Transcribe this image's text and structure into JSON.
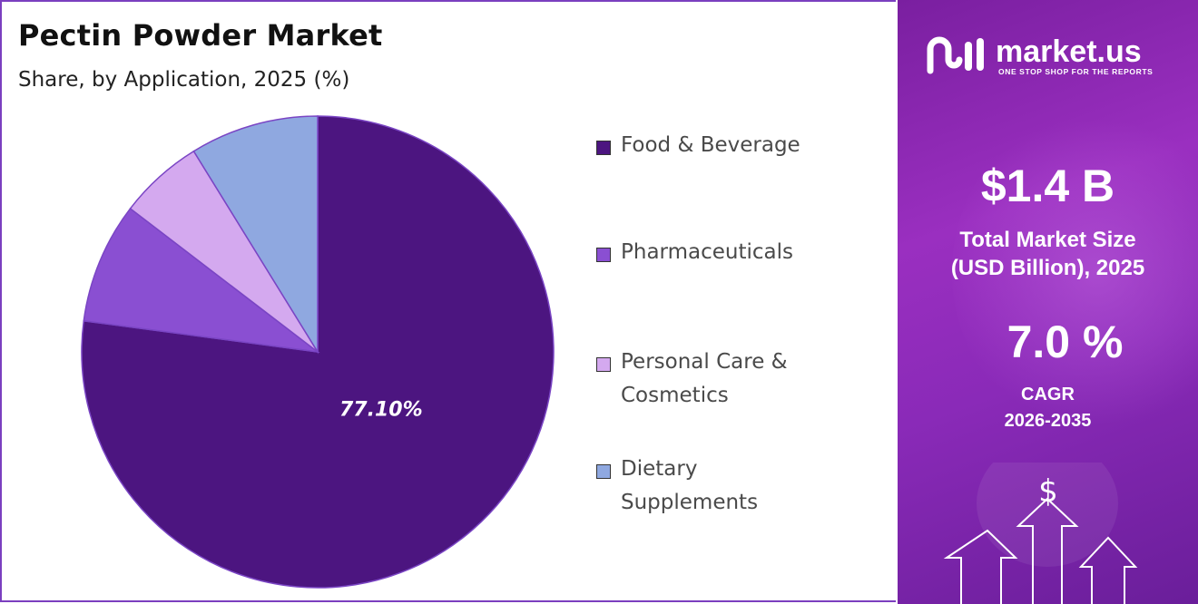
{
  "header": {
    "title": "Pectin Powder  Market",
    "subtitle": "Share, by Application, 2025 (%)"
  },
  "chart_data": {
    "type": "pie",
    "title": "Pectin Powder  Market",
    "subtitle": "Share, by Application, 2025 (%)",
    "start_angle_deg": 0,
    "direction": "clockwise",
    "slices": [
      {
        "label": "Food & Beverage",
        "value": 77.1,
        "color": "#4c1580",
        "data_label": "77.10%"
      },
      {
        "label": "Pharmaceuticals",
        "value": 8.3,
        "color": "#8a4fd2",
        "data_label": ""
      },
      {
        "label": "Personal Care & Cosmetics",
        "value": 5.8,
        "color": "#d4a9ef",
        "data_label": ""
      },
      {
        "label": "Dietary Supplements",
        "value": 8.8,
        "color": "#8fa8e0",
        "data_label": ""
      }
    ],
    "legend_position": "right"
  },
  "legend": {
    "items": [
      {
        "line1": "Food & Beverage",
        "line2": "",
        "color": "#4c1580"
      },
      {
        "line1": "Pharmaceuticals",
        "line2": "",
        "color": "#8a4fd2"
      },
      {
        "line1": "Personal Care &",
        "line2": "Cosmetics",
        "color": "#d4a9ef"
      },
      {
        "line1": "Dietary",
        "line2": "Supplements",
        "color": "#8fa8e0"
      }
    ]
  },
  "sidebar": {
    "brand": "market.us",
    "tagline": "ONE STOP SHOP FOR THE REPORTS",
    "market_size_value": "$1.4 B",
    "market_size_label_1": "Total Market Size",
    "market_size_label_2": "(USD Billion), 2025",
    "cagr_value": "7.0 %",
    "cagr_label": "CAGR",
    "cagr_period": "2026-2035",
    "dollar_symbol": "$",
    "icons": [
      "market-us-logo-icon",
      "dollar-icon",
      "up-arrow-icon"
    ]
  }
}
